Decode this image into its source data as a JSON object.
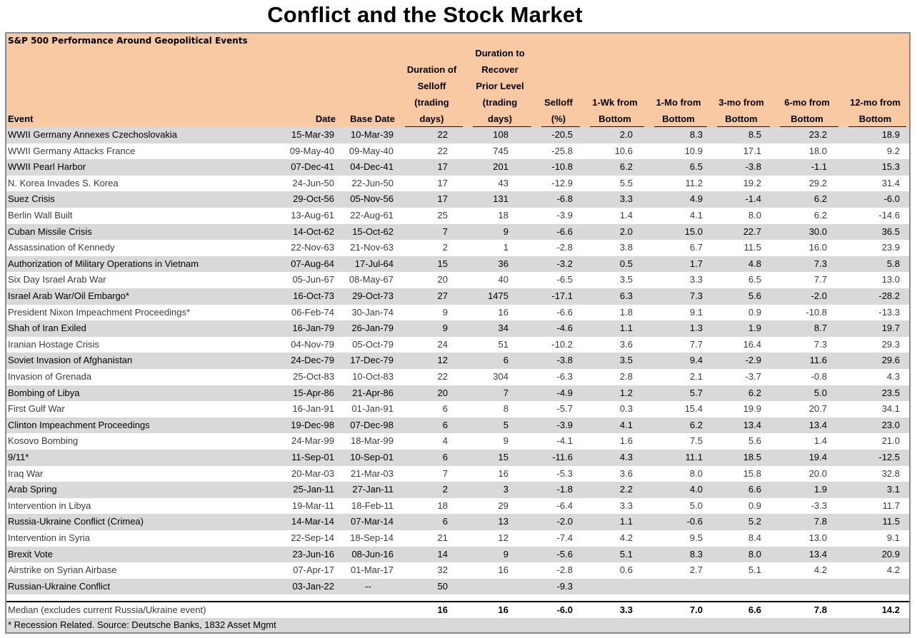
{
  "page_title": "Conflict and the Stock Market",
  "colors": {
    "header_bg": "#f8c9a3",
    "row_shade": "#d9d9d9"
  },
  "chart_data": {
    "type": "table",
    "title": "Conflict and the Stock Market",
    "subtitle": "S&P 500 Performance Around Geopolitical Events",
    "columns": [
      {
        "key": "event",
        "lines": [
          "Event"
        ]
      },
      {
        "key": "date",
        "lines": [
          "Date"
        ]
      },
      {
        "key": "base",
        "lines": [
          "Base Date"
        ]
      },
      {
        "key": "dur",
        "lines": [
          "Duration of",
          "Selloff",
          "(trading",
          "days)"
        ]
      },
      {
        "key": "rec",
        "lines": [
          "Duration to",
          "Recover",
          "Prior Level",
          "(trading",
          "days)"
        ]
      },
      {
        "key": "sell",
        "lines": [
          "Selloff",
          "(%)"
        ]
      },
      {
        "key": "w1",
        "lines": [
          "1-Wk from",
          "Bottom"
        ]
      },
      {
        "key": "m1",
        "lines": [
          "1-Mo from",
          "Bottom"
        ]
      },
      {
        "key": "m3",
        "lines": [
          "3-mo from",
          "Bottom"
        ]
      },
      {
        "key": "m6",
        "lines": [
          "6-mo from",
          "Bottom"
        ]
      },
      {
        "key": "m12",
        "lines": [
          "12-mo from",
          "Bottom"
        ]
      }
    ],
    "rows": [
      [
        "WWII Germany Annexes Czechoslovakia",
        "15-Mar-39",
        "10-Mar-39",
        "22",
        "108",
        "-20.5",
        "2.0",
        "8.3",
        "8.5",
        "23.2",
        "18.9"
      ],
      [
        "WWII Germany Attacks France",
        "09-May-40",
        "09-May-40",
        "22",
        "745",
        "-25.8",
        "10.6",
        "10.9",
        "17.1",
        "18.0",
        "9.2"
      ],
      [
        "WWII Pearl Harbor",
        "07-Dec-41",
        "04-Dec-41",
        "17",
        "201",
        "-10.8",
        "6.2",
        "6.5",
        "-3.8",
        "-1.1",
        "15.3"
      ],
      [
        "N. Korea Invades S. Korea",
        "24-Jun-50",
        "22-Jun-50",
        "17",
        "43",
        "-12.9",
        "5.5",
        "11.2",
        "19.2",
        "29.2",
        "31.4"
      ],
      [
        "Suez Crisis",
        "29-Oct-56",
        "05-Nov-56",
        "17",
        "131",
        "-6.8",
        "3.3",
        "4.9",
        "-1.4",
        "6.2",
        "-6.0"
      ],
      [
        "Berlin Wall Built",
        "13-Aug-61",
        "22-Aug-61",
        "25",
        "18",
        "-3.9",
        "1.4",
        "4.1",
        "8.0",
        "6.2",
        "-14.6"
      ],
      [
        "Cuban Missile Crisis",
        "14-Oct-62",
        "15-Oct-62",
        "7",
        "9",
        "-6.6",
        "2.0",
        "15.0",
        "22.7",
        "30.0",
        "36.5"
      ],
      [
        "Assassination of Kennedy",
        "22-Nov-63",
        "21-Nov-63",
        "2",
        "1",
        "-2.8",
        "3.8",
        "6.7",
        "11.5",
        "16.0",
        "23.9"
      ],
      [
        "Authorization of Military Operations in Vietnam",
        "07-Aug-64",
        "17-Jul-64",
        "15",
        "36",
        "-3.2",
        "0.5",
        "1.7",
        "4.8",
        "7.3",
        "5.8"
      ],
      [
        "Six Day Israel Arab War",
        "05-Jun-67",
        "08-May-67",
        "20",
        "40",
        "-6.5",
        "3.5",
        "3.3",
        "6.5",
        "7.7",
        "13.0"
      ],
      [
        "Israel Arab War/Oil Embargo*",
        "16-Oct-73",
        "29-Oct-73",
        "27",
        "1475",
        "-17.1",
        "6.3",
        "7.3",
        "5.6",
        "-2.0",
        "-28.2"
      ],
      [
        "President Nixon Impeachment Proceedings*",
        "06-Feb-74",
        "30-Jan-74",
        "9",
        "16",
        "-6.6",
        "1.8",
        "9.1",
        "0.9",
        "-10.8",
        "-13.3"
      ],
      [
        "Shah of Iran Exiled",
        "16-Jan-79",
        "26-Jan-79",
        "9",
        "34",
        "-4.6",
        "1.1",
        "1.3",
        "1.9",
        "8.7",
        "19.7"
      ],
      [
        "Iranian Hostage Crisis",
        "04-Nov-79",
        "05-Oct-79",
        "24",
        "51",
        "-10.2",
        "3.6",
        "7.7",
        "16.4",
        "7.3",
        "29.3"
      ],
      [
        "Soviet Invasion of Afghanistan",
        "24-Dec-79",
        "17-Dec-79",
        "12",
        "6",
        "-3.8",
        "3.5",
        "9.4",
        "-2.9",
        "11.6",
        "29.6"
      ],
      [
        "Invasion of Grenada",
        "25-Oct-83",
        "10-Oct-83",
        "22",
        "304",
        "-6.3",
        "2.8",
        "2.1",
        "-3.7",
        "-0.8",
        "4.3"
      ],
      [
        "Bombing of Libya",
        "15-Apr-86",
        "21-Apr-86",
        "20",
        "7",
        "-4.9",
        "1.2",
        "5.7",
        "6.2",
        "5.0",
        "23.5"
      ],
      [
        "First Gulf War",
        "16-Jan-91",
        "01-Jan-91",
        "6",
        "8",
        "-5.7",
        "0.3",
        "15.4",
        "19.9",
        "20.7",
        "34.1"
      ],
      [
        "Clinton Impeachment Proceedings",
        "19-Dec-98",
        "07-Dec-98",
        "6",
        "5",
        "-3.9",
        "4.1",
        "6.2",
        "13.4",
        "13.4",
        "23.0"
      ],
      [
        "Kosovo Bombing",
        "24-Mar-99",
        "18-Mar-99",
        "4",
        "9",
        "-4.1",
        "1.6",
        "7.5",
        "5.6",
        "1.4",
        "21.0"
      ],
      [
        "9/11*",
        "11-Sep-01",
        "10-Sep-01",
        "6",
        "15",
        "-11.6",
        "4.3",
        "11.1",
        "18.5",
        "19.4",
        "-12.5"
      ],
      [
        "Iraq War",
        "20-Mar-03",
        "21-Mar-03",
        "7",
        "16",
        "-5.3",
        "3.6",
        "8.0",
        "15.8",
        "20.0",
        "32.8"
      ],
      [
        "Arab Spring",
        "25-Jan-11",
        "27-Jan-11",
        "2",
        "3",
        "-1.8",
        "2.2",
        "4.0",
        "6.6",
        "1.9",
        "3.1"
      ],
      [
        "Intervention in Libya",
        "19-Mar-11",
        "18-Feb-11",
        "18",
        "29",
        "-6.4",
        "3.3",
        "5.0",
        "0.9",
        "-3.3",
        "11.7"
      ],
      [
        "Russia-Ukraine Conflict (Crimea)",
        "14-Mar-14",
        "07-Mar-14",
        "6",
        "13",
        "-2.0",
        "1.1",
        "-0.6",
        "5.2",
        "7.8",
        "11.5"
      ],
      [
        "Intervention in Syria",
        "22-Sep-14",
        "18-Sep-14",
        "21",
        "12",
        "-7.4",
        "4.2",
        "9.5",
        "8.4",
        "13.0",
        "9.1"
      ],
      [
        "Brexit Vote",
        "23-Jun-16",
        "08-Jun-16",
        "14",
        "9",
        "-5.6",
        "5.1",
        "8.3",
        "8.0",
        "13.4",
        "20.9"
      ],
      [
        "Airstrike on Syrian Airbase",
        "07-Apr-17",
        "01-Mar-17",
        "32",
        "16",
        "-2.8",
        "0.6",
        "2.7",
        "5.1",
        "4.2",
        "4.2"
      ],
      [
        "Russian-Ukraine Conflict",
        "03-Jan-22",
        "--",
        "50",
        "",
        "-9.3",
        "",
        "",
        "",
        "",
        ""
      ]
    ],
    "median_row": [
      "Median (excludes current Russia/Ukraine event)",
      "",
      "",
      "16",
      "16",
      "-6.0",
      "3.3",
      "7.0",
      "6.6",
      "7.8",
      "14.2"
    ],
    "footnote": "* Recession Related. Source: Deutsche Banks, 1832 Asset Mgmt"
  }
}
